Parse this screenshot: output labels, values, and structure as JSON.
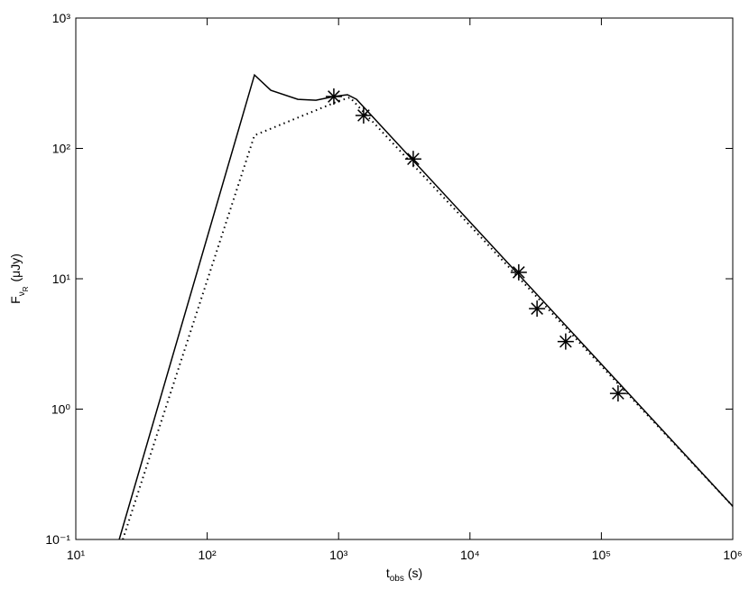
{
  "chart_data": {
    "type": "line",
    "xscale": "log",
    "yscale": "log",
    "xlim": [
      10,
      1000000
    ],
    "ylim": [
      0.1,
      1000
    ],
    "xticks": [
      {
        "value": 10,
        "label": "10¹"
      },
      {
        "value": 100,
        "label": "10²"
      },
      {
        "value": 1000,
        "label": "10³"
      },
      {
        "value": 10000,
        "label": "10⁴"
      },
      {
        "value": 100000,
        "label": "10⁵"
      },
      {
        "value": 1000000,
        "label": "10⁶"
      }
    ],
    "yticks": [
      {
        "value": 0.1,
        "label": "10⁻¹"
      },
      {
        "value": 1,
        "label": "10⁰"
      },
      {
        "value": 10,
        "label": "10¹"
      },
      {
        "value": 100,
        "label": "10²"
      },
      {
        "value": 1000,
        "label": "10³"
      }
    ],
    "xlabel": {
      "main": "t",
      "sub": "obs",
      "unit": "(s)"
    },
    "ylabel": {
      "main": "F",
      "sub": "ν",
      "subsub": "R",
      "unit": "(μJy)"
    },
    "series": [
      {
        "style": "solid",
        "color": "#000000",
        "x": [
          21.4,
          229,
          305,
          490,
          672,
          920,
          1170,
          1370,
          1000000
        ],
        "values": [
          0.1,
          366,
          279,
          238,
          234,
          250,
          258,
          238,
          0.18
        ]
      },
      {
        "style": "dotted",
        "color": "#000000",
        "x": [
          22.8,
          229,
          1000,
          1220,
          1000000
        ],
        "values": [
          0.1,
          126,
          231,
          246,
          0.18
        ]
      },
      {
        "style": "markers",
        "color": "#000000",
        "x": [
          920,
          1550,
          3700,
          23500,
          32400,
          53500,
          134000
        ],
        "values": [
          250,
          179,
          83,
          11.2,
          5.9,
          3.3,
          1.32
        ]
      }
    ]
  }
}
